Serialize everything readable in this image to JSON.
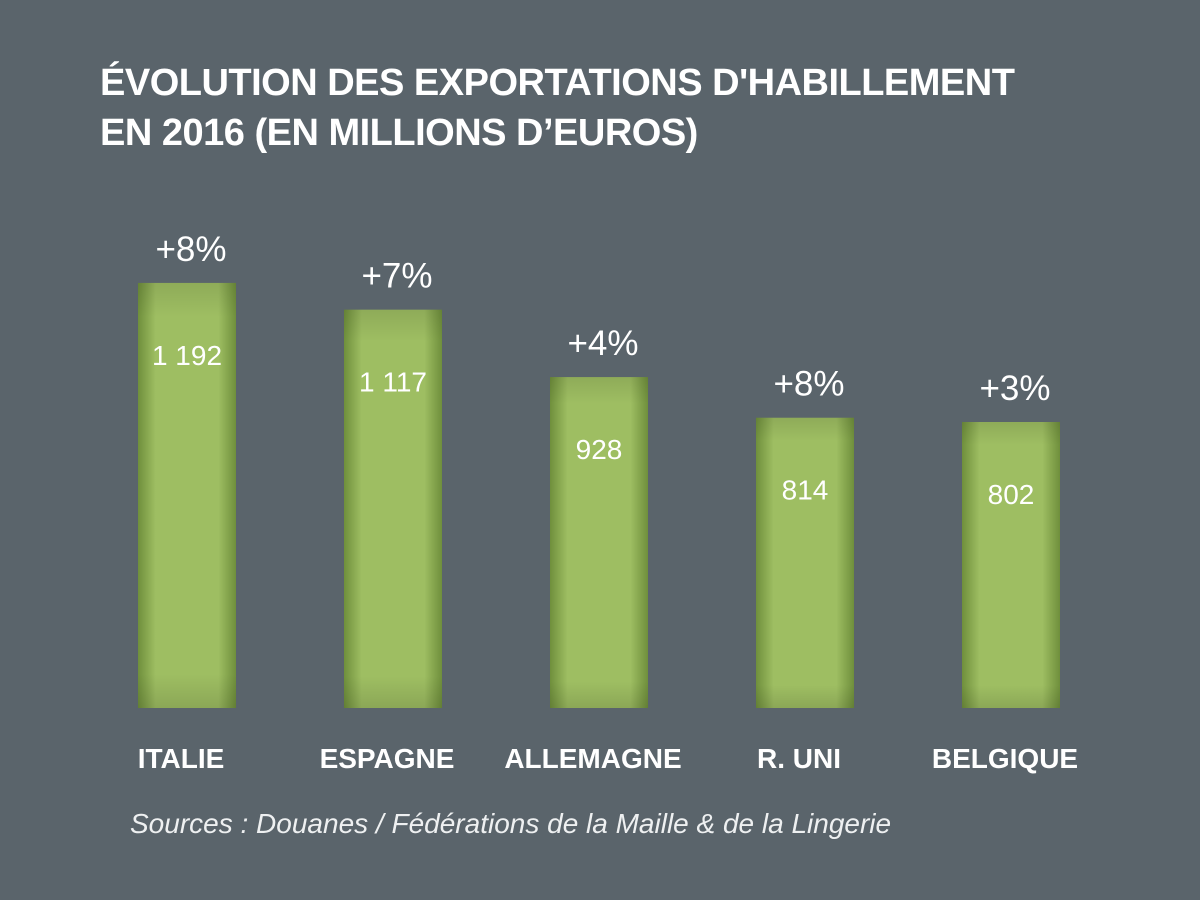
{
  "chart_data": {
    "type": "bar",
    "title": "ÉVOLUTION DES EXPORTATIONS  D'HABILLEMENT\nEN 2016 (EN MILLIONS D’EUROS)",
    "categories": [
      "ITALIE",
      "ESPAGNE",
      "ALLEMAGNE",
      "R. UNI",
      "BELGIQUE"
    ],
    "values": [
      1192,
      1117,
      928,
      814,
      802
    ],
    "value_labels": [
      "1 192",
      "1 117",
      "928",
      "814",
      "802"
    ],
    "growth_labels": [
      "+8%",
      "+7%",
      "+4%",
      "+8%",
      "+3%"
    ],
    "source": "Sources : Douanes / Fédérations de la Maille & de la Lingerie",
    "xlabel": "",
    "ylabel": "",
    "grid": false,
    "legend": "none",
    "colors": {
      "background": "#5a646b",
      "bar_light": "#9ebe62",
      "bar_dark": "#6f8f3c",
      "text": "#ffffff"
    }
  }
}
